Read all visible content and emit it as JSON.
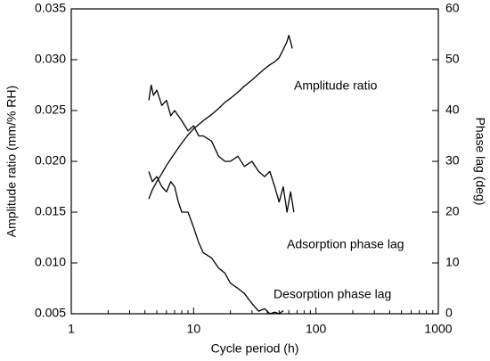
{
  "chart_data": {
    "type": "line",
    "xlabel": "Cycle period (h)",
    "ylabel": "Amplitude ratio (mm/% RH)",
    "y2label": "Phase lag (deg)",
    "xscale": "log",
    "xlim": [
      1,
      1000
    ],
    "xticks": [
      1,
      10,
      100,
      1000
    ],
    "ylim": [
      0.005,
      0.035
    ],
    "yticks": [
      0.005,
      {
        "value": 0.01,
        "label": "0.010"
      },
      0.015,
      {
        "value": 0.02,
        "label": "0.020"
      },
      0.025,
      {
        "value": 0.03,
        "label": "0.030"
      },
      0.035
    ],
    "y2lim": [
      0,
      60
    ],
    "y2ticks": [
      0,
      10,
      20,
      30,
      40,
      50,
      60
    ],
    "annotations": [
      "Amplitude ratio",
      "Adsorption phase lag",
      "Desorption phase lag"
    ],
    "series": [
      {
        "name": "Amplitude ratio",
        "color": "#000000",
        "x": [
          4.3,
          4.6,
          5,
          5.5,
          6,
          7,
          8,
          9,
          10,
          12,
          14,
          16,
          18,
          20,
          23,
          26,
          30,
          34,
          38,
          42,
          46,
          50,
          54,
          58,
          60,
          62,
          64
        ],
        "values": [
          0.0163,
          0.0172,
          0.018,
          0.0188,
          0.0196,
          0.0208,
          0.0218,
          0.0226,
          0.0232,
          0.024,
          0.0246,
          0.0252,
          0.0258,
          0.0262,
          0.0268,
          0.0274,
          0.028,
          0.0286,
          0.0291,
          0.0295,
          0.0298,
          0.0302,
          0.031,
          0.0318,
          0.0324,
          0.0318,
          0.0311
        ]
      },
      {
        "name": "Adsorption phase lag",
        "color": "#000000",
        "axis": "y2",
        "x": [
          4.3,
          4.5,
          4.7,
          5,
          5.5,
          6,
          6.5,
          7,
          8,
          9,
          10,
          11,
          12,
          14,
          16,
          18,
          20,
          23,
          26,
          30,
          34,
          38,
          42,
          46,
          50,
          54,
          58,
          62,
          66
        ],
        "values": [
          42,
          45,
          43,
          44,
          41,
          42,
          39,
          40,
          38,
          36,
          37,
          35,
          35,
          34,
          31,
          30,
          30,
          31,
          29,
          30,
          28,
          27,
          28,
          25,
          22,
          25,
          20,
          24,
          20
        ]
      },
      {
        "name": "Desorption phase lag",
        "color": "#000000",
        "axis": "y2",
        "x": [
          4.3,
          4.6,
          5,
          5.5,
          6,
          6.5,
          7,
          7.5,
          8,
          9,
          10,
          11,
          12,
          14,
          16,
          18,
          20,
          23,
          26,
          30,
          34,
          38,
          42,
          46,
          50,
          54
        ],
        "values": [
          28,
          26,
          27,
          25,
          24,
          26,
          25,
          22,
          20,
          20,
          17,
          14,
          12,
          11,
          9,
          8,
          6,
          5,
          4,
          2,
          0.5,
          1,
          0,
          0.3,
          0,
          0.6
        ]
      }
    ]
  }
}
